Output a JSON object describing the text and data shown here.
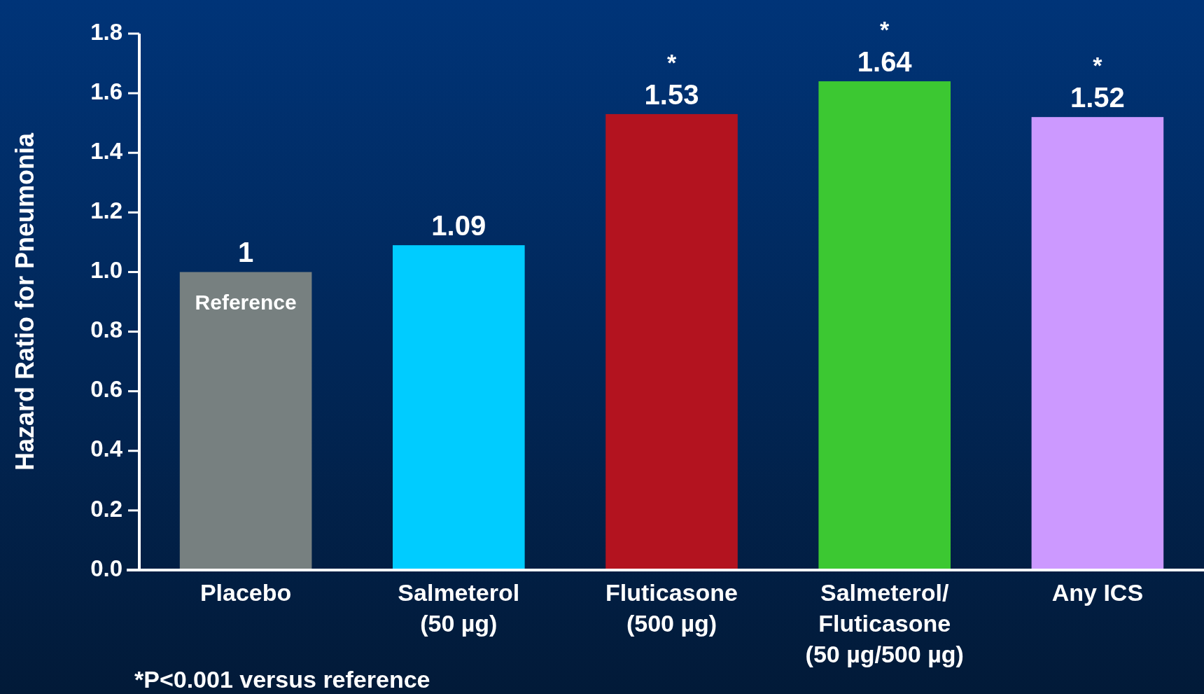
{
  "chart_data": {
    "type": "bar",
    "ylabel": "Hazard Ratio for Pneumonia",
    "categories": [
      "Placebo",
      "Salmeterol\n(50 µg)",
      "Fluticasone\n(500 µg)",
      "Salmeterol/\nFluticasone\n(50 µg/500 µg)",
      "Any ICS"
    ],
    "values": [
      1,
      1.09,
      1.53,
      1.64,
      1.52
    ],
    "colors": [
      "#778080",
      "#00ccff",
      "#b3131f",
      "#3cc832",
      "#cc99ff"
    ],
    "ylim": [
      0,
      1.8
    ],
    "yticks": [
      {
        "value": 0,
        "label": "0.0"
      },
      0.2,
      0.4,
      0.6,
      0.8,
      {
        "value": 1,
        "label": "1.0"
      },
      1.2,
      1.4,
      1.6,
      1.8
    ],
    "data_labels": true,
    "annotations": [
      {
        "text": "Reference",
        "x": "Placebo",
        "y": 1
      },
      {
        "text": "*",
        "x": "Fluticasone\n(500 µg)",
        "y": 1.53
      },
      {
        "text": "*",
        "x": "Salmeterol/\nFluticasone\n(50 µg/500 µg)",
        "y": 1.64
      },
      {
        "text": "*",
        "x": "Any ICS",
        "y": 1.52
      },
      "*P<0.001 versus reference"
    ]
  }
}
